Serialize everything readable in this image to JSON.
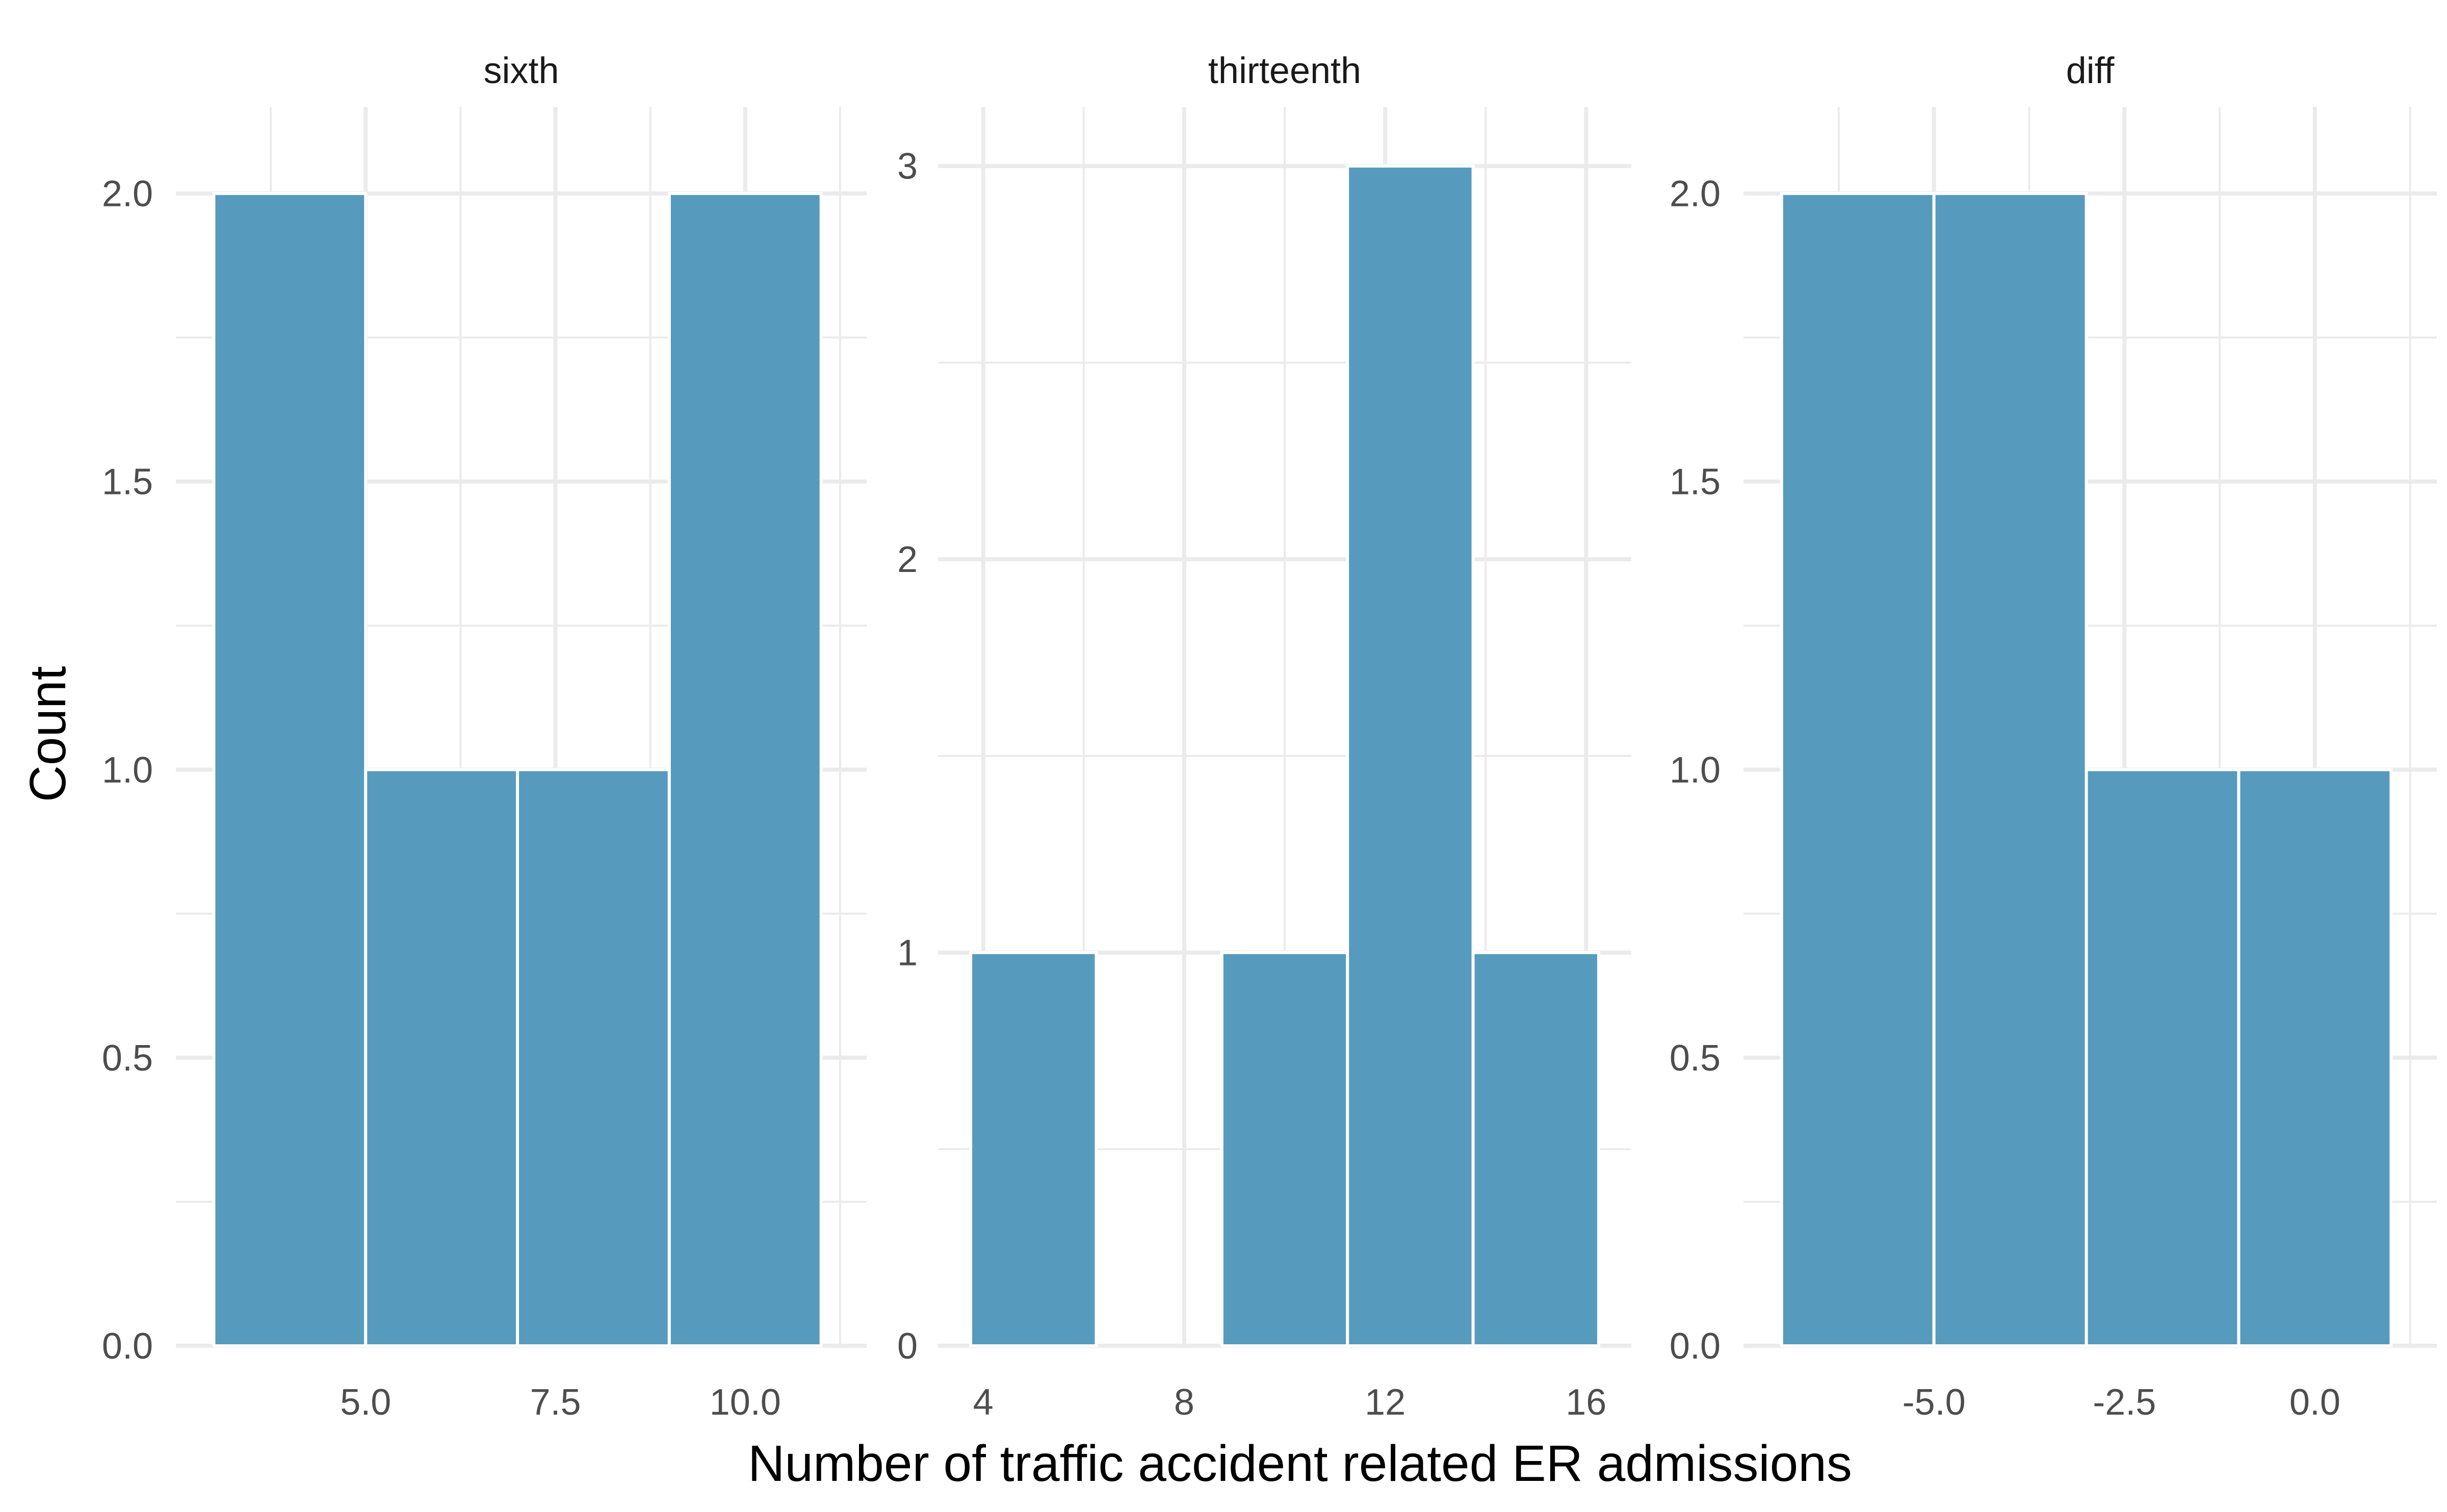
{
  "chart_data": {
    "type": "bar",
    "xlabel": "Number of traffic accident related ER admissions",
    "ylabel": "Count",
    "grid": true,
    "bar_color": "#569bbd",
    "panels": [
      {
        "name": "sixth",
        "bin_width": 2,
        "bins": [
          {
            "x0": 3,
            "x1": 5,
            "count": 2
          },
          {
            "x0": 5,
            "x1": 7,
            "count": 1
          },
          {
            "x0": 7,
            "x1": 9,
            "count": 1
          },
          {
            "x0": 9,
            "x1": 11,
            "count": 2
          }
        ],
        "xlim": [
          2.5,
          11.6
        ],
        "ylim": [
          0,
          2.15
        ],
        "x_ticks": [
          {
            "v": 5,
            "label": "5.0"
          },
          {
            "v": 7.5,
            "label": "7.5"
          },
          {
            "v": 10,
            "label": "10.0"
          }
        ],
        "x_minor": [
          3.75,
          6.25,
          8.75,
          11.25
        ],
        "y_ticks": [
          {
            "v": 0,
            "label": "0.0"
          },
          {
            "v": 0.5,
            "label": "0.5"
          },
          {
            "v": 1,
            "label": "1.0"
          },
          {
            "v": 1.5,
            "label": "1.5"
          },
          {
            "v": 2,
            "label": "2.0"
          }
        ],
        "y_minor": [
          0.25,
          0.75,
          1.25,
          1.75
        ]
      },
      {
        "name": "thirteenth",
        "bin_width": 2.5,
        "bins": [
          {
            "x0": 3.75,
            "x1": 6.25,
            "count": 1
          },
          {
            "x0": 6.25,
            "x1": 8.75,
            "count": 0
          },
          {
            "x0": 8.75,
            "x1": 11.25,
            "count": 1
          },
          {
            "x0": 11.25,
            "x1": 13.75,
            "count": 3
          },
          {
            "x0": 13.75,
            "x1": 16.25,
            "count": 1
          }
        ],
        "xlim": [
          3.1,
          16.9
        ],
        "ylim": [
          0,
          3.15
        ],
        "x_ticks": [
          {
            "v": 4,
            "label": "4"
          },
          {
            "v": 8,
            "label": "8"
          },
          {
            "v": 12,
            "label": "12"
          },
          {
            "v": 16,
            "label": "16"
          }
        ],
        "x_minor": [
          6,
          10,
          14
        ],
        "y_ticks": [
          {
            "v": 0,
            "label": "0"
          },
          {
            "v": 1,
            "label": "1"
          },
          {
            "v": 2,
            "label": "2"
          },
          {
            "v": 3,
            "label": "3"
          }
        ],
        "y_minor": [
          0.5,
          1.5,
          2.5
        ]
      },
      {
        "name": "diff",
        "bin_width": 2,
        "bins": [
          {
            "x0": -7,
            "x1": -5,
            "count": 2
          },
          {
            "x0": -5,
            "x1": -3,
            "count": 2
          },
          {
            "x0": -3,
            "x1": -1,
            "count": 1
          },
          {
            "x0": -1,
            "x1": 1,
            "count": 1
          }
        ],
        "xlim": [
          -7.5,
          1.6
        ],
        "ylim": [
          0,
          2.15
        ],
        "x_ticks": [
          {
            "v": -5,
            "label": "-5.0"
          },
          {
            "v": -2.5,
            "label": "-2.5"
          },
          {
            "v": 0,
            "label": "0.0"
          }
        ],
        "x_minor": [
          -6.25,
          -3.75,
          -1.25,
          1.25
        ],
        "y_ticks": [
          {
            "v": 0,
            "label": "0.0"
          },
          {
            "v": 0.5,
            "label": "0.5"
          },
          {
            "v": 1,
            "label": "1.0"
          },
          {
            "v": 1.5,
            "label": "1.5"
          },
          {
            "v": 2,
            "label": "2.0"
          }
        ],
        "y_minor": [
          0.25,
          0.75,
          1.25,
          1.75
        ]
      }
    ]
  }
}
